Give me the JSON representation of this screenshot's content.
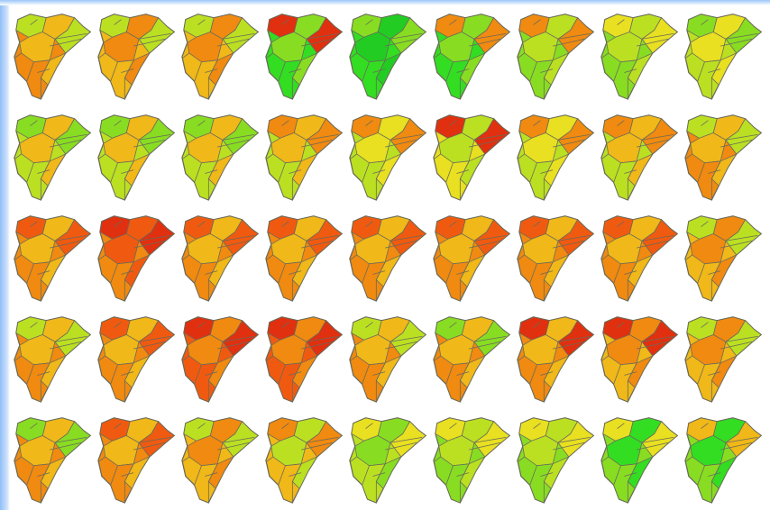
{
  "maps": [
    {
      "colors": [
        "#f08a10",
        "#f0b818",
        "#bbe022"
      ]
    },
    {
      "colors": [
        "#f0b818",
        "#f08a10",
        "#bbe022"
      ]
    },
    {
      "colors": [
        "#f0b818",
        "#f08a10",
        "#bbe022"
      ]
    },
    {
      "colors": [
        "#33dd22",
        "#88dd22",
        "#e03010"
      ]
    },
    {
      "colors": [
        "#33dd22",
        "#22cc22",
        "#88dd22"
      ]
    },
    {
      "colors": [
        "#33dd22",
        "#88dd22",
        "#f08a10"
      ]
    },
    {
      "colors": [
        "#88dd22",
        "#bbe022",
        "#f08a10"
      ]
    },
    {
      "colors": [
        "#88dd22",
        "#bbe022",
        "#e8e020"
      ]
    },
    {
      "colors": [
        "#bbe022",
        "#e8e020",
        "#88dd22"
      ]
    },
    {
      "colors": [
        "#bbe022",
        "#f0b818",
        "#88dd22"
      ]
    },
    {
      "colors": [
        "#bbe022",
        "#f0b818",
        "#88dd22"
      ]
    },
    {
      "colors": [
        "#bbe022",
        "#f0b818",
        "#88dd22"
      ]
    },
    {
      "colors": [
        "#bbe022",
        "#f0b818",
        "#f08a10"
      ]
    },
    {
      "colors": [
        "#bbe022",
        "#e8e020",
        "#f08a10"
      ]
    },
    {
      "colors": [
        "#e8e020",
        "#bbe022",
        "#e03010"
      ]
    },
    {
      "colors": [
        "#bbe022",
        "#e8e020",
        "#f08a10"
      ]
    },
    {
      "colors": [
        "#bbe022",
        "#f0b818",
        "#f08a10"
      ]
    },
    {
      "colors": [
        "#f08a10",
        "#f0b818",
        "#bbe022"
      ]
    },
    {
      "colors": [
        "#f08a10",
        "#f0b818",
        "#f05a10"
      ]
    },
    {
      "colors": [
        "#f08a10",
        "#f05a10",
        "#e03010"
      ]
    },
    {
      "colors": [
        "#f08a10",
        "#f0b818",
        "#f05a10"
      ]
    },
    {
      "colors": [
        "#f08a10",
        "#f0b818",
        "#f05a10"
      ]
    },
    {
      "colors": [
        "#f08a10",
        "#f0b818",
        "#f05a10"
      ]
    },
    {
      "colors": [
        "#f08a10",
        "#f0b818",
        "#f05a10"
      ]
    },
    {
      "colors": [
        "#f08a10",
        "#f0b818",
        "#f05a10"
      ]
    },
    {
      "colors": [
        "#f08a10",
        "#f0b818",
        "#f05a10"
      ]
    },
    {
      "colors": [
        "#f0b818",
        "#f08a10",
        "#bbe022"
      ]
    },
    {
      "colors": [
        "#f08a10",
        "#f0b818",
        "#bbe022"
      ]
    },
    {
      "colors": [
        "#f08a10",
        "#f0b818",
        "#f05a10"
      ]
    },
    {
      "colors": [
        "#f05a10",
        "#f08a10",
        "#e03010"
      ]
    },
    {
      "colors": [
        "#f05a10",
        "#f08a10",
        "#e03010"
      ]
    },
    {
      "colors": [
        "#f08a10",
        "#f0b818",
        "#bbe022"
      ]
    },
    {
      "colors": [
        "#f08a10",
        "#f0b818",
        "#88dd22"
      ]
    },
    {
      "colors": [
        "#f08a10",
        "#f0b818",
        "#e03010"
      ]
    },
    {
      "colors": [
        "#f0b818",
        "#f08a10",
        "#e03010"
      ]
    },
    {
      "colors": [
        "#f0b818",
        "#f08a10",
        "#bbe022"
      ]
    },
    {
      "colors": [
        "#f08a10",
        "#f0b818",
        "#88dd22"
      ]
    },
    {
      "colors": [
        "#f08a10",
        "#f0b818",
        "#f05a10"
      ]
    },
    {
      "colors": [
        "#f0b818",
        "#f08a10",
        "#bbe022"
      ]
    },
    {
      "colors": [
        "#f0b818",
        "#bbe022",
        "#f08a10"
      ]
    },
    {
      "colors": [
        "#bbe022",
        "#88dd22",
        "#e8e020"
      ]
    },
    {
      "colors": [
        "#88dd22",
        "#bbe022",
        "#e8e020"
      ]
    },
    {
      "colors": [
        "#88dd22",
        "#bbe022",
        "#e8e020"
      ]
    },
    {
      "colors": [
        "#88dd22",
        "#33dd22",
        "#e8e020"
      ]
    },
    {
      "colors": [
        "#88dd22",
        "#33dd22",
        "#f0b818"
      ]
    }
  ]
}
